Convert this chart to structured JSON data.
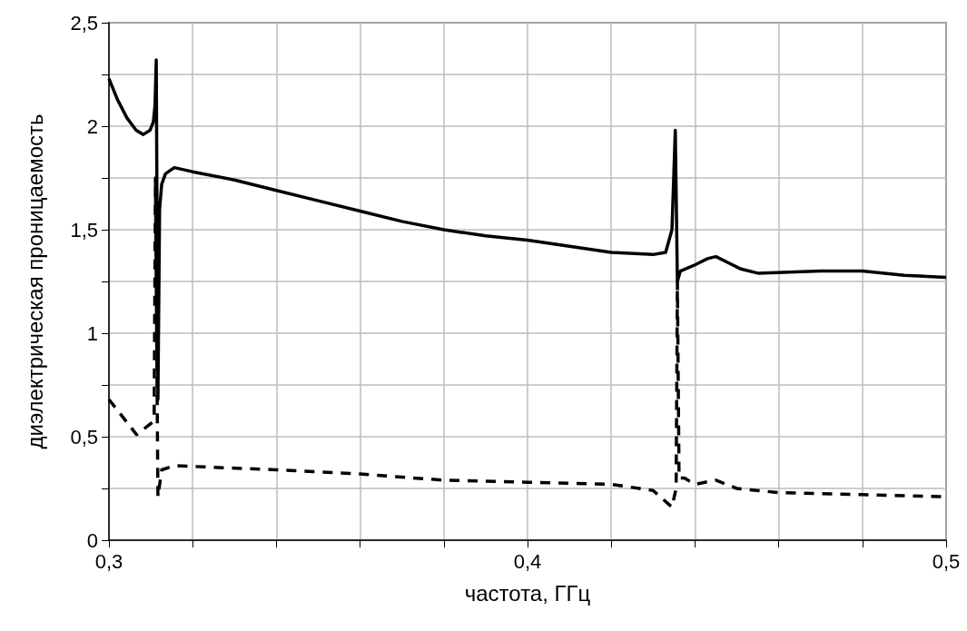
{
  "chart_data": {
    "type": "line",
    "xlabel": "частота, ГГц",
    "ylabel": "диэлектрическая проницаемость",
    "xlim": [
      0.3,
      0.5
    ],
    "ylim": [
      0,
      2.5
    ],
    "xticks": [
      {
        "value": 0.3,
        "label": "0,3"
      },
      {
        "value": 0.32,
        "label": null
      },
      {
        "value": 0.34,
        "label": null
      },
      {
        "value": 0.36,
        "label": null
      },
      {
        "value": 0.38,
        "label": null
      },
      {
        "value": 0.4,
        "label": "0,4"
      },
      {
        "value": 0.42,
        "label": null
      },
      {
        "value": 0.44,
        "label": null
      },
      {
        "value": 0.46,
        "label": null
      },
      {
        "value": 0.48,
        "label": null
      },
      {
        "value": 0.5,
        "label": "0,5"
      }
    ],
    "yticks": [
      0,
      {
        "value": 0.25,
        "label": null
      },
      {
        "value": 0.5,
        "label": "0,5"
      },
      {
        "value": 0.75,
        "label": null
      },
      1,
      {
        "value": 1.25,
        "label": null
      },
      {
        "value": 1.5,
        "label": "1,5"
      },
      {
        "value": 1.75,
        "label": null
      },
      2,
      {
        "value": 2.25,
        "label": null
      },
      {
        "value": 2.5,
        "label": "2,5"
      }
    ],
    "grid": true,
    "marker": "none",
    "series": [
      {
        "color": "#000000",
        "line_style": "solid",
        "x": [
          0.3,
          0.302,
          0.3043,
          0.3065,
          0.3082,
          0.3098,
          0.3106,
          0.311,
          0.3113,
          0.3117,
          0.3121,
          0.3126,
          0.3135,
          0.3156,
          0.32,
          0.33,
          0.34,
          0.35,
          0.36,
          0.37,
          0.38,
          0.39,
          0.4,
          0.41,
          0.42,
          0.43,
          0.433,
          0.4345,
          0.4353,
          0.4358,
          0.4365,
          0.44,
          0.443,
          0.445,
          0.448,
          0.451,
          0.455,
          0.47,
          0.48,
          0.49,
          0.5
        ],
        "values": [
          2.23,
          2.13,
          2.04,
          1.98,
          1.96,
          1.98,
          2.02,
          2.1,
          2.32,
          0.68,
          1.6,
          1.72,
          1.77,
          1.8,
          1.78,
          1.74,
          1.69,
          1.64,
          1.59,
          1.54,
          1.5,
          1.47,
          1.45,
          1.42,
          1.39,
          1.38,
          1.39,
          1.5,
          1.98,
          1.25,
          1.3,
          1.33,
          1.36,
          1.37,
          1.34,
          1.31,
          1.29,
          1.3,
          1.3,
          1.28,
          1.27
        ]
      },
      {
        "color": "#000000",
        "line_style": "dashed",
        "x": [
          0.3,
          0.3066,
          0.3104,
          0.3108,
          0.3111,
          0.3117,
          0.3126,
          0.3156,
          0.34,
          0.36,
          0.38,
          0.4,
          0.42,
          0.43,
          0.4345,
          0.4355,
          0.4358,
          0.4362,
          0.4375,
          0.44,
          0.445,
          0.45,
          0.46,
          0.48,
          0.5
        ],
        "values": [
          0.68,
          0.51,
          0.57,
          0.6,
          1.75,
          0.21,
          0.34,
          0.36,
          0.34,
          0.32,
          0.29,
          0.28,
          0.27,
          0.24,
          0.16,
          0.25,
          1.25,
          0.3,
          0.3,
          0.27,
          0.29,
          0.25,
          0.23,
          0.22,
          0.21
        ]
      }
    ]
  }
}
